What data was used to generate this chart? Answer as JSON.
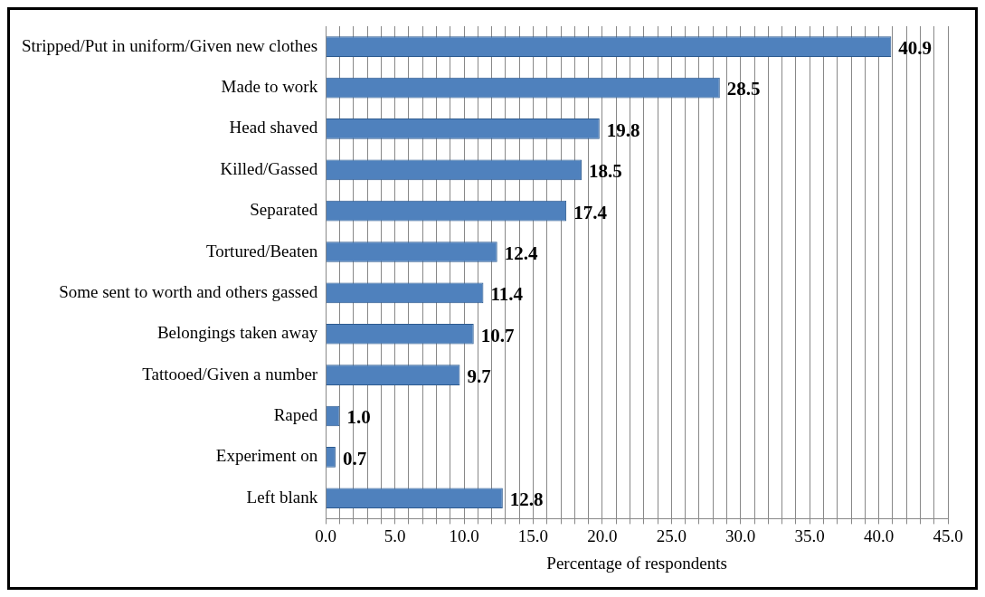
{
  "chart_data": {
    "type": "bar",
    "orientation": "horizontal",
    "xlabel": "Percentage of respondents",
    "categories": [
      "Stripped/Put in uniform/Given new clothes",
      "Made to work",
      "Head shaved",
      "Killed/Gassed",
      "Separated",
      "Tortured/Beaten",
      "Some sent to worth and others gassed",
      "Belongings taken away",
      "Tattooed/Given a number",
      "Raped",
      "Experiment on",
      "Left blank"
    ],
    "values": [
      40.9,
      28.5,
      19.8,
      18.5,
      17.4,
      12.4,
      11.4,
      10.7,
      9.7,
      1.0,
      0.7,
      12.8
    ],
    "value_labels": [
      "40.9",
      "28.5",
      "19.8",
      "18.5",
      "17.4",
      "12.4",
      "11.4",
      "10.7",
      "9.7",
      "1.0",
      "0.7",
      "12.8"
    ],
    "color": "#4f81bd",
    "xlim": [
      0,
      45
    ],
    "xticks": [
      {
        "value": 0,
        "label": "0.0"
      },
      {
        "value": 1,
        "label": null
      },
      {
        "value": 2,
        "label": null
      },
      {
        "value": 3,
        "label": null
      },
      {
        "value": 4,
        "label": null
      },
      {
        "value": 5,
        "label": "5.0"
      },
      {
        "value": 6,
        "label": null
      },
      {
        "value": 7,
        "label": null
      },
      {
        "value": 8,
        "label": null
      },
      {
        "value": 9,
        "label": null
      },
      {
        "value": 10,
        "label": "10.0"
      },
      {
        "value": 11,
        "label": null
      },
      {
        "value": 12,
        "label": null
      },
      {
        "value": 13,
        "label": null
      },
      {
        "value": 14,
        "label": null
      },
      {
        "value": 15,
        "label": "15.0"
      },
      {
        "value": 16,
        "label": null
      },
      {
        "value": 17,
        "label": null
      },
      {
        "value": 18,
        "label": null
      },
      {
        "value": 19,
        "label": null
      },
      {
        "value": 20,
        "label": "20.0"
      },
      {
        "value": 21,
        "label": null
      },
      {
        "value": 22,
        "label": null
      },
      {
        "value": 23,
        "label": null
      },
      {
        "value": 24,
        "label": null
      },
      {
        "value": 25,
        "label": "25.0"
      },
      {
        "value": 26,
        "label": null
      },
      {
        "value": 27,
        "label": null
      },
      {
        "value": 28,
        "label": null
      },
      {
        "value": 29,
        "label": null
      },
      {
        "value": 30,
        "label": "30.0"
      },
      {
        "value": 31,
        "label": null
      },
      {
        "value": 32,
        "label": null
      },
      {
        "value": 33,
        "label": null
      },
      {
        "value": 34,
        "label": null
      },
      {
        "value": 35,
        "label": "35.0"
      },
      {
        "value": 36,
        "label": null
      },
      {
        "value": 37,
        "label": null
      },
      {
        "value": 38,
        "label": null
      },
      {
        "value": 39,
        "label": null
      },
      {
        "value": 40,
        "label": "40.0"
      },
      {
        "value": 41,
        "label": null
      },
      {
        "value": 42,
        "label": null
      },
      {
        "value": 43,
        "label": null
      },
      {
        "value": 44,
        "label": null
      },
      {
        "value": 45,
        "label": "45.0"
      }
    ],
    "grid": "x"
  }
}
